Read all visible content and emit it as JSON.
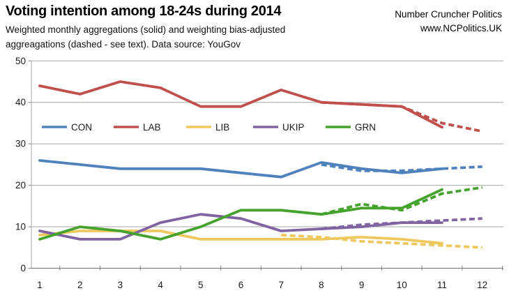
{
  "header": {
    "title": "Voting intention among 18-24s during 2014",
    "subtitle_line1": "Weighted monthly aggregations (solid) and weighting bias-adjusted",
    "subtitle_line2": "aggreagations (dashed - see text). Data source: YouGov",
    "brand_line1": "Number Cruncher Politics",
    "brand_line2": "www.NCPolitics.UK"
  },
  "chart_data": {
    "type": "line",
    "title": "Voting intention among 18-24s during 2014",
    "xlabel": "",
    "ylabel": "",
    "x": [
      1,
      2,
      3,
      4,
      5,
      6,
      7,
      8,
      9,
      10,
      11,
      12
    ],
    "y_ticks": [
      0,
      10,
      20,
      30,
      40,
      50
    ],
    "ylim": [
      0,
      50
    ],
    "grid": true,
    "legend_position": "inside-upper-left",
    "series": [
      {
        "name": "CON",
        "style": "solid",
        "color": "#4F81BD",
        "values": [
          26,
          25,
          24,
          24,
          24,
          23,
          22,
          25.5,
          24,
          23,
          24,
          null
        ]
      },
      {
        "name": "LAB",
        "style": "solid",
        "color": "#C0504D",
        "values": [
          44,
          42,
          45,
          43.5,
          39,
          39,
          43,
          40,
          39.5,
          39,
          34,
          null
        ]
      },
      {
        "name": "LIB",
        "style": "solid",
        "color": "#EEC85E",
        "values": [
          8,
          9,
          9,
          9,
          7,
          7,
          7,
          7,
          7.5,
          7,
          6,
          null
        ]
      },
      {
        "name": "UKIP",
        "style": "solid",
        "color": "#8064A2",
        "values": [
          9,
          7,
          7,
          11,
          13,
          12,
          9,
          9.5,
          10,
          11,
          11,
          null
        ]
      },
      {
        "name": "GRN",
        "style": "solid",
        "color": "#45A22C",
        "values": [
          7,
          10,
          9,
          7,
          10,
          14,
          14,
          13,
          14.5,
          14.5,
          19,
          null
        ]
      },
      {
        "name": "CON bias-adjusted",
        "style": "dashed",
        "color": "#4F81BD",
        "values": [
          null,
          null,
          null,
          null,
          null,
          null,
          null,
          25,
          23.5,
          23.5,
          24,
          24.5
        ]
      },
      {
        "name": "LAB bias-adjusted",
        "style": "dashed",
        "color": "#C0504D",
        "values": [
          null,
          null,
          null,
          null,
          null,
          null,
          null,
          40,
          39.5,
          39,
          35,
          33
        ]
      },
      {
        "name": "LIB bias-adjusted",
        "style": "dashed",
        "color": "#EEC85E",
        "values": [
          null,
          null,
          null,
          null,
          null,
          null,
          8,
          7.5,
          6.5,
          6,
          5.5,
          5
        ]
      },
      {
        "name": "UKIP bias-adjusted",
        "style": "dashed",
        "color": "#8064A2",
        "values": [
          null,
          null,
          null,
          null,
          null,
          null,
          null,
          9.5,
          10.5,
          11,
          11.5,
          12
        ]
      },
      {
        "name": "GRN bias-adjusted",
        "style": "dashed",
        "color": "#45A22C",
        "values": [
          null,
          null,
          null,
          null,
          null,
          null,
          null,
          13,
          15.5,
          14,
          18,
          19.5
        ]
      }
    ],
    "legend": {
      "entries": [
        {
          "label": "CON",
          "color": "#4F81BD"
        },
        {
          "label": "LAB",
          "color": "#C0504D"
        },
        {
          "label": "LIB",
          "color": "#EEC85E"
        },
        {
          "label": "UKIP",
          "color": "#8064A2"
        },
        {
          "label": "GRN",
          "color": "#45A22C"
        }
      ]
    }
  }
}
